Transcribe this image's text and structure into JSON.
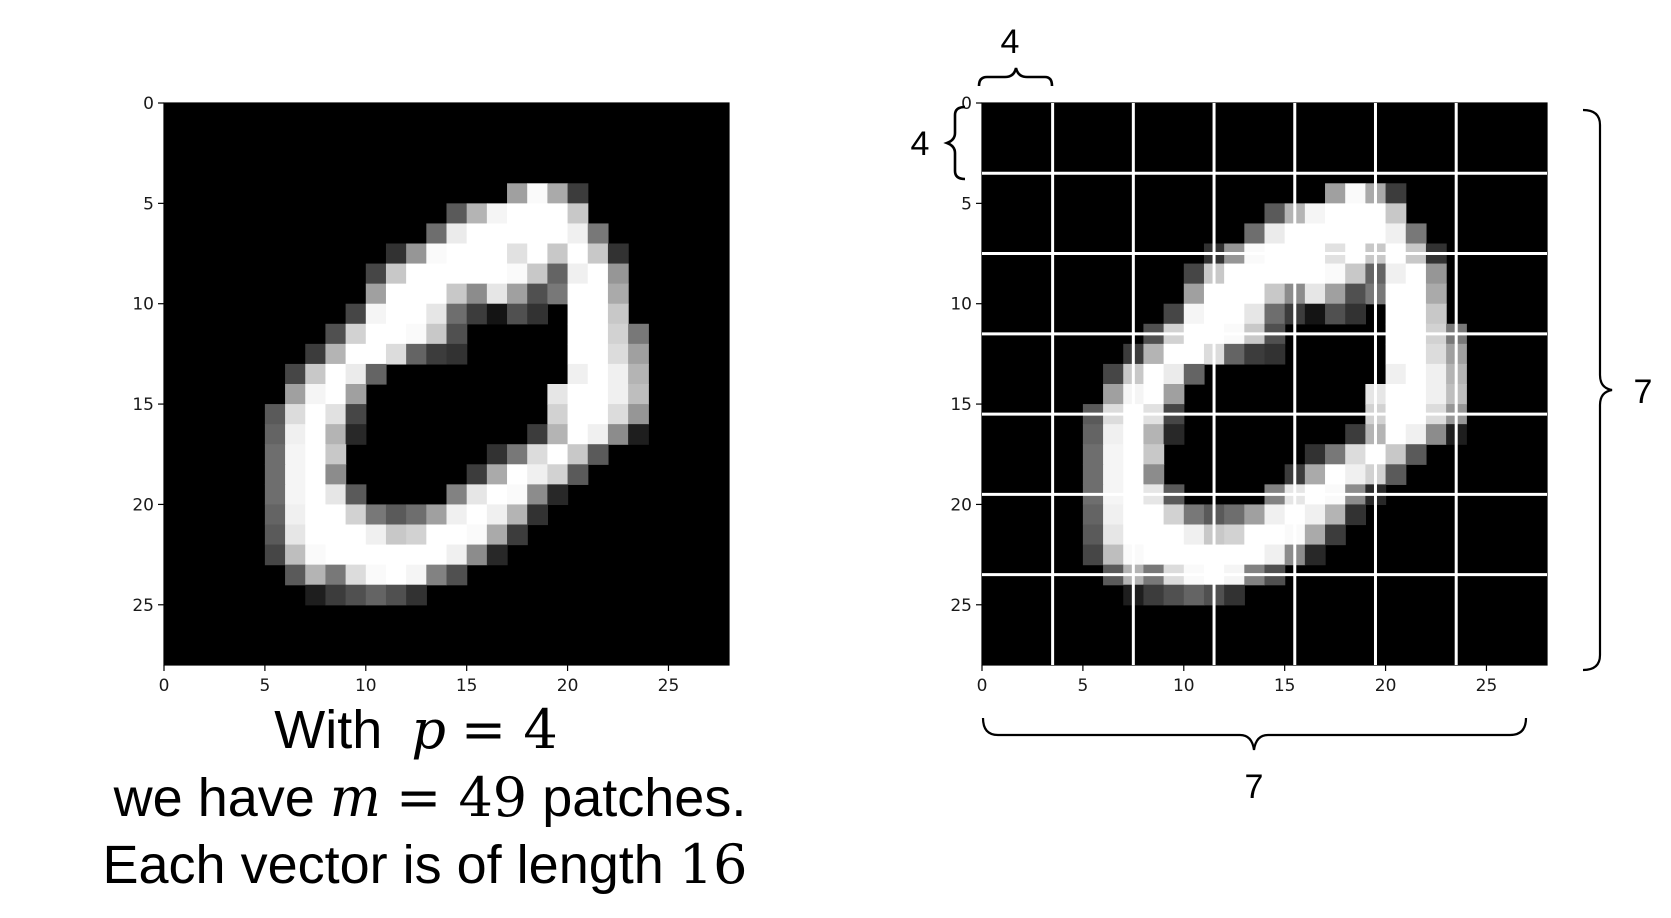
{
  "image_size": {
    "rows": 28,
    "cols": 28
  },
  "x_ticks": [
    "0",
    "5",
    "10",
    "15",
    "20",
    "25"
  ],
  "y_ticks": [
    "0",
    "5",
    "10",
    "15",
    "20",
    "25"
  ],
  "digit_pixels": [
    [
      4,
      17,
      160
    ],
    [
      4,
      18,
      250
    ],
    [
      4,
      19,
      170
    ],
    [
      4,
      20,
      60
    ],
    [
      5,
      14,
      90
    ],
    [
      5,
      15,
      180
    ],
    [
      5,
      16,
      245
    ],
    [
      5,
      17,
      255
    ],
    [
      5,
      18,
      255
    ],
    [
      5,
      19,
      255
    ],
    [
      5,
      20,
      200
    ],
    [
      6,
      13,
      110
    ],
    [
      6,
      14,
      235
    ],
    [
      6,
      15,
      255
    ],
    [
      6,
      16,
      255
    ],
    [
      6,
      17,
      255
    ],
    [
      6,
      18,
      255
    ],
    [
      6,
      19,
      255
    ],
    [
      6,
      20,
      240
    ],
    [
      6,
      21,
      120
    ],
    [
      7,
      11,
      50
    ],
    [
      7,
      12,
      150
    ],
    [
      7,
      13,
      250
    ],
    [
      7,
      14,
      255
    ],
    [
      7,
      15,
      255
    ],
    [
      7,
      16,
      255
    ],
    [
      7,
      17,
      225
    ],
    [
      7,
      18,
      255
    ],
    [
      7,
      19,
      200
    ],
    [
      7,
      20,
      255
    ],
    [
      7,
      21,
      200
    ],
    [
      7,
      22,
      50
    ],
    [
      8,
      10,
      70
    ],
    [
      8,
      11,
      200
    ],
    [
      8,
      12,
      255
    ],
    [
      8,
      13,
      255
    ],
    [
      8,
      14,
      255
    ],
    [
      8,
      15,
      255
    ],
    [
      8,
      16,
      255
    ],
    [
      8,
      17,
      250
    ],
    [
      8,
      18,
      200
    ],
    [
      8,
      19,
      100
    ],
    [
      8,
      20,
      240
    ],
    [
      8,
      21,
      255
    ],
    [
      8,
      22,
      150
    ],
    [
      9,
      10,
      160
    ],
    [
      9,
      11,
      255
    ],
    [
      9,
      12,
      255
    ],
    [
      9,
      13,
      255
    ],
    [
      9,
      14,
      200
    ],
    [
      9,
      15,
      140
    ],
    [
      9,
      16,
      230
    ],
    [
      9,
      17,
      160
    ],
    [
      9,
      18,
      80
    ],
    [
      9,
      19,
      120
    ],
    [
      9,
      20,
      255
    ],
    [
      9,
      21,
      255
    ],
    [
      9,
      22,
      170
    ],
    [
      10,
      9,
      70
    ],
    [
      10,
      10,
      245
    ],
    [
      10,
      11,
      255
    ],
    [
      10,
      12,
      255
    ],
    [
      10,
      13,
      230
    ],
    [
      10,
      14,
      110
    ],
    [
      10,
      15,
      60
    ],
    [
      10,
      16,
      20
    ],
    [
      10,
      17,
      80
    ],
    [
      10,
      18,
      50
    ],
    [
      10,
      20,
      255
    ],
    [
      10,
      21,
      255
    ],
    [
      10,
      22,
      200
    ],
    [
      11,
      8,
      80
    ],
    [
      11,
      9,
      210
    ],
    [
      11,
      10,
      255
    ],
    [
      11,
      11,
      255
    ],
    [
      11,
      12,
      250
    ],
    [
      11,
      13,
      200
    ],
    [
      11,
      14,
      80
    ],
    [
      11,
      20,
      255
    ],
    [
      11,
      21,
      255
    ],
    [
      11,
      22,
      210
    ],
    [
      11,
      23,
      120
    ],
    [
      12,
      7,
      60
    ],
    [
      12,
      8,
      180
    ],
    [
      12,
      9,
      255
    ],
    [
      12,
      10,
      255
    ],
    [
      12,
      11,
      220
    ],
    [
      12,
      12,
      100
    ],
    [
      12,
      13,
      60
    ],
    [
      12,
      14,
      50
    ],
    [
      12,
      20,
      255
    ],
    [
      12,
      21,
      255
    ],
    [
      12,
      22,
      220
    ],
    [
      12,
      23,
      160
    ],
    [
      13,
      6,
      70
    ],
    [
      13,
      7,
      200
    ],
    [
      13,
      8,
      255
    ],
    [
      13,
      9,
      235
    ],
    [
      13,
      10,
      100
    ],
    [
      13,
      20,
      240
    ],
    [
      13,
      21,
      255
    ],
    [
      13,
      22,
      240
    ],
    [
      13,
      23,
      180
    ],
    [
      14,
      6,
      160
    ],
    [
      14,
      7,
      245
    ],
    [
      14,
      8,
      255
    ],
    [
      14,
      9,
      160
    ],
    [
      14,
      19,
      230
    ],
    [
      14,
      20,
      255
    ],
    [
      14,
      21,
      255
    ],
    [
      14,
      22,
      240
    ],
    [
      14,
      23,
      190
    ],
    [
      15,
      5,
      90
    ],
    [
      15,
      6,
      220
    ],
    [
      15,
      7,
      255
    ],
    [
      15,
      8,
      225
    ],
    [
      15,
      9,
      70
    ],
    [
      15,
      19,
      210
    ],
    [
      15,
      20,
      255
    ],
    [
      15,
      21,
      255
    ],
    [
      15,
      22,
      220
    ],
    [
      15,
      23,
      150
    ],
    [
      16,
      5,
      100
    ],
    [
      16,
      6,
      240
    ],
    [
      16,
      7,
      255
    ],
    [
      16,
      8,
      180
    ],
    [
      16,
      9,
      40
    ],
    [
      16,
      18,
      60
    ],
    [
      16,
      19,
      180
    ],
    [
      16,
      20,
      255
    ],
    [
      16,
      21,
      240
    ],
    [
      16,
      22,
      140
    ],
    [
      16,
      23,
      30
    ],
    [
      17,
      5,
      110
    ],
    [
      17,
      6,
      245
    ],
    [
      17,
      7,
      255
    ],
    [
      17,
      8,
      200
    ],
    [
      17,
      16,
      50
    ],
    [
      17,
      17,
      120
    ],
    [
      17,
      18,
      220
    ],
    [
      17,
      19,
      255
    ],
    [
      17,
      20,
      200
    ],
    [
      17,
      21,
      90
    ],
    [
      18,
      5,
      110
    ],
    [
      18,
      6,
      245
    ],
    [
      18,
      7,
      255
    ],
    [
      18,
      8,
      140
    ],
    [
      18,
      15,
      60
    ],
    [
      18,
      16,
      170
    ],
    [
      18,
      17,
      255
    ],
    [
      18,
      18,
      240
    ],
    [
      18,
      19,
      210
    ],
    [
      18,
      20,
      90
    ],
    [
      19,
      5,
      110
    ],
    [
      19,
      6,
      245
    ],
    [
      19,
      7,
      255
    ],
    [
      19,
      8,
      230
    ],
    [
      19,
      9,
      90
    ],
    [
      19,
      14,
      130
    ],
    [
      19,
      15,
      230
    ],
    [
      19,
      16,
      255
    ],
    [
      19,
      17,
      250
    ],
    [
      19,
      18,
      140
    ],
    [
      19,
      19,
      40
    ],
    [
      20,
      5,
      100
    ],
    [
      20,
      6,
      240
    ],
    [
      20,
      7,
      255
    ],
    [
      20,
      8,
      255
    ],
    [
      20,
      9,
      210
    ],
    [
      20,
      10,
      120
    ],
    [
      20,
      11,
      90
    ],
    [
      20,
      12,
      110
    ],
    [
      20,
      13,
      160
    ],
    [
      20,
      14,
      240
    ],
    [
      20,
      15,
      255
    ],
    [
      20,
      16,
      240
    ],
    [
      20,
      17,
      180
    ],
    [
      20,
      18,
      50
    ],
    [
      21,
      5,
      90
    ],
    [
      21,
      6,
      230
    ],
    [
      21,
      7,
      255
    ],
    [
      21,
      8,
      255
    ],
    [
      21,
      9,
      255
    ],
    [
      21,
      10,
      240
    ],
    [
      21,
      11,
      200
    ],
    [
      21,
      12,
      210
    ],
    [
      21,
      13,
      255
    ],
    [
      21,
      14,
      255
    ],
    [
      21,
      15,
      250
    ],
    [
      21,
      16,
      170
    ],
    [
      21,
      17,
      60
    ],
    [
      22,
      5,
      70
    ],
    [
      22,
      6,
      190
    ],
    [
      22,
      7,
      250
    ],
    [
      22,
      8,
      255
    ],
    [
      22,
      9,
      255
    ],
    [
      22,
      10,
      255
    ],
    [
      22,
      11,
      255
    ],
    [
      22,
      12,
      255
    ],
    [
      22,
      13,
      255
    ],
    [
      22,
      14,
      240
    ],
    [
      22,
      15,
      140
    ],
    [
      22,
      16,
      40
    ],
    [
      23,
      6,
      90
    ],
    [
      23,
      7,
      180
    ],
    [
      23,
      8,
      120
    ],
    [
      23,
      9,
      220
    ],
    [
      23,
      10,
      250
    ],
    [
      23,
      11,
      255
    ],
    [
      23,
      12,
      245
    ],
    [
      23,
      13,
      130
    ],
    [
      23,
      14,
      80
    ],
    [
      24,
      7,
      30
    ],
    [
      24,
      8,
      60
    ],
    [
      24,
      9,
      80
    ],
    [
      24,
      10,
      100
    ],
    [
      24,
      11,
      80
    ],
    [
      24,
      12,
      50
    ]
  ],
  "annotations": {
    "patch_width": "4",
    "patch_height": "4",
    "rows_count": "7",
    "cols_count": "7"
  },
  "caption": {
    "line1_prefix": "With",
    "line1_var": "p",
    "line1_eq": " = ",
    "line1_val": "4",
    "line2_prefix": "we have ",
    "line2_var": "m",
    "line2_eq": " = ",
    "line2_val": "49",
    "line2_suffix": " patches.",
    "line3_prefix": "Each vector is of length ",
    "line3_val": "16"
  }
}
